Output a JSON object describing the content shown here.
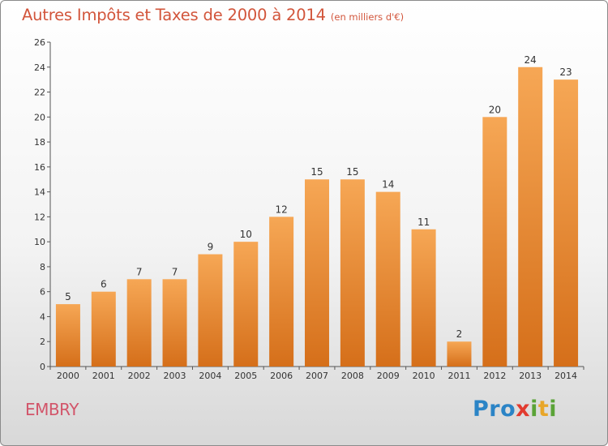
{
  "title": "Autres Impôts et Taxes de 2000 à 2014",
  "subtitle": "(en milliers d'€)",
  "commune": "EMBRY",
  "logo": {
    "part1": "Pro",
    "part2": "x",
    "part3": "i",
    "part4": "t",
    "part5": "i"
  },
  "colors": {
    "bar_top": "#f6a755",
    "bar_bottom": "#d56f1a",
    "title": "#d2553b",
    "commune": "#d2556a"
  },
  "chart_data": {
    "type": "bar",
    "categories": [
      "2000",
      "2001",
      "2002",
      "2003",
      "2004",
      "2005",
      "2006",
      "2007",
      "2008",
      "2009",
      "2010",
      "2011",
      "2012",
      "2013",
      "2014"
    ],
    "values": [
      5,
      6,
      7,
      7,
      9,
      10,
      12,
      15,
      15,
      14,
      11,
      2,
      20,
      24,
      23
    ],
    "ylim": [
      0,
      26
    ],
    "yticks": [
      0,
      2,
      4,
      6,
      8,
      10,
      12,
      14,
      16,
      18,
      20,
      22,
      24,
      26
    ],
    "grid": false,
    "data_labels": true
  }
}
